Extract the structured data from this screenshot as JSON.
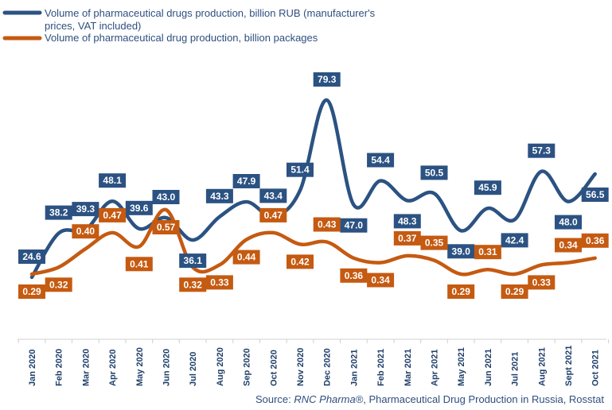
{
  "chart_data": {
    "type": "line",
    "categories": [
      "Jan 2020",
      "Feb 2020",
      "Mar 2020",
      "Apr 2020",
      "May 2020",
      "Jun 2020",
      "Jul 2020",
      "Aug 2020",
      "Sep 2020",
      "Oct 2020",
      "Nov 2020",
      "Dec 2020",
      "Jan 2021",
      "Feb 2021",
      "Mar 2021",
      "Apr 2021",
      "May 2021",
      "Jun 2021",
      "Jul 2021",
      "Aug 2021",
      "Sept 2021",
      "Oct 2021"
    ],
    "series": [
      {
        "name": "Volume of pharmaceutical drugs production, billion RUB (manufacturer's prices, VAT included)",
        "legend_lines": [
          "Volume of pharmaceutical drugs production, billion RUB (manufacturer's",
          "prices, VAT included)"
        ],
        "color": "#2b5282",
        "values": [
          24.6,
          38.2,
          39.3,
          48.1,
          39.6,
          43.0,
          36.1,
          43.3,
          47.9,
          43.4,
          51.4,
          79.3,
          47.0,
          54.4,
          48.3,
          50.5,
          39.0,
          45.9,
          42.4,
          57.3,
          48.0,
          56.5
        ],
        "labels": [
          "24.6",
          "38.2",
          "39.3",
          "48.1",
          "39.6",
          "43.0",
          "36.1",
          "43.3",
          "47.9",
          "43.4",
          "51.4",
          "79.3",
          "47.0",
          "54.4",
          "48.3",
          "50.5",
          "39.0",
          "45.9",
          "42.4",
          "57.3",
          "48.0",
          "56.5"
        ]
      },
      {
        "name": "Volume of pharmaceutical drug production, billion packages",
        "legend_lines": [
          "Volume of pharmaceutical drug production, billion packages"
        ],
        "color": "#c55a11",
        "values": [
          0.29,
          0.32,
          0.4,
          0.47,
          0.41,
          0.57,
          0.32,
          0.33,
          0.44,
          0.47,
          0.42,
          0.43,
          0.36,
          0.34,
          0.37,
          0.35,
          0.29,
          0.31,
          0.29,
          0.33,
          0.34,
          0.36
        ],
        "labels": [
          "0.29",
          "0.32",
          "0.40",
          "0.47",
          "0.41",
          "0.57",
          "0.32",
          "0.33",
          "0.44",
          "0.47",
          "0.42",
          "0.43",
          "0.36",
          "0.34",
          "0.37",
          "0.35",
          "0.29",
          "0.31",
          "0.29",
          "0.33",
          "0.34",
          "0.36"
        ]
      }
    ],
    "source_prefix": "Source: ",
    "source_italic": "RNC Pharma®",
    "source_suffix": ", Pharmaceutical Drug Production in Russia, Rosstat"
  }
}
